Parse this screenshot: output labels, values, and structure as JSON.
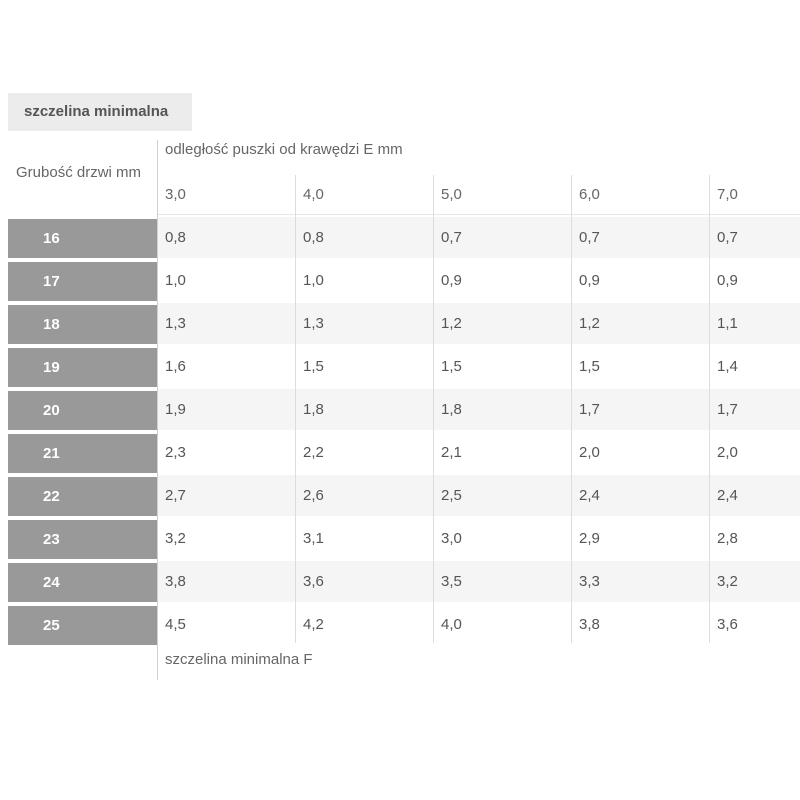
{
  "page": {
    "title_badge": "szczelina minimalna",
    "footer_label": "szczelina minimalna F"
  },
  "table": {
    "row_header_title": "Grubość drzwi mm",
    "col_group_title": "odległość puszki od krawędzi E mm",
    "columns": [
      "3,0",
      "4,0",
      "5,0",
      "6,0",
      "7,0"
    ],
    "rows": [
      {
        "label": "16",
        "values": [
          "0,8",
          "0,8",
          "0,7",
          "0,7",
          "0,7"
        ]
      },
      {
        "label": "17",
        "values": [
          "1,0",
          "1,0",
          "0,9",
          "0,9",
          "0,9"
        ]
      },
      {
        "label": "18",
        "values": [
          "1,3",
          "1,3",
          "1,2",
          "1,2",
          "1,1"
        ]
      },
      {
        "label": "19",
        "values": [
          "1,6",
          "1,5",
          "1,5",
          "1,5",
          "1,4"
        ]
      },
      {
        "label": "20",
        "values": [
          "1,9",
          "1,8",
          "1,8",
          "1,7",
          "1,7"
        ]
      },
      {
        "label": "21",
        "values": [
          "2,3",
          "2,2",
          "2,1",
          "2,0",
          "2,0"
        ]
      },
      {
        "label": "22",
        "values": [
          "2,7",
          "2,6",
          "2,5",
          "2,4",
          "2,4"
        ]
      },
      {
        "label": "23",
        "values": [
          "3,2",
          "3,1",
          "3,0",
          "2,9",
          "2,8"
        ]
      },
      {
        "label": "24",
        "values": [
          "3,8",
          "3,6",
          "3,5",
          "3,3",
          "3,2"
        ]
      },
      {
        "label": "25",
        "values": [
          "4,5",
          "4,2",
          "4,0",
          "3,8",
          "3,6"
        ]
      }
    ]
  },
  "colors": {
    "row_header_bg": "#999999",
    "row_header_text": "#ffffff",
    "zebra_light": "#f5f5f5",
    "title_badge_bg": "#ececec",
    "label_text": "#666666",
    "value_text": "#555555",
    "main_border": "#cfcfcf",
    "column_border": "#dddddd"
  }
}
